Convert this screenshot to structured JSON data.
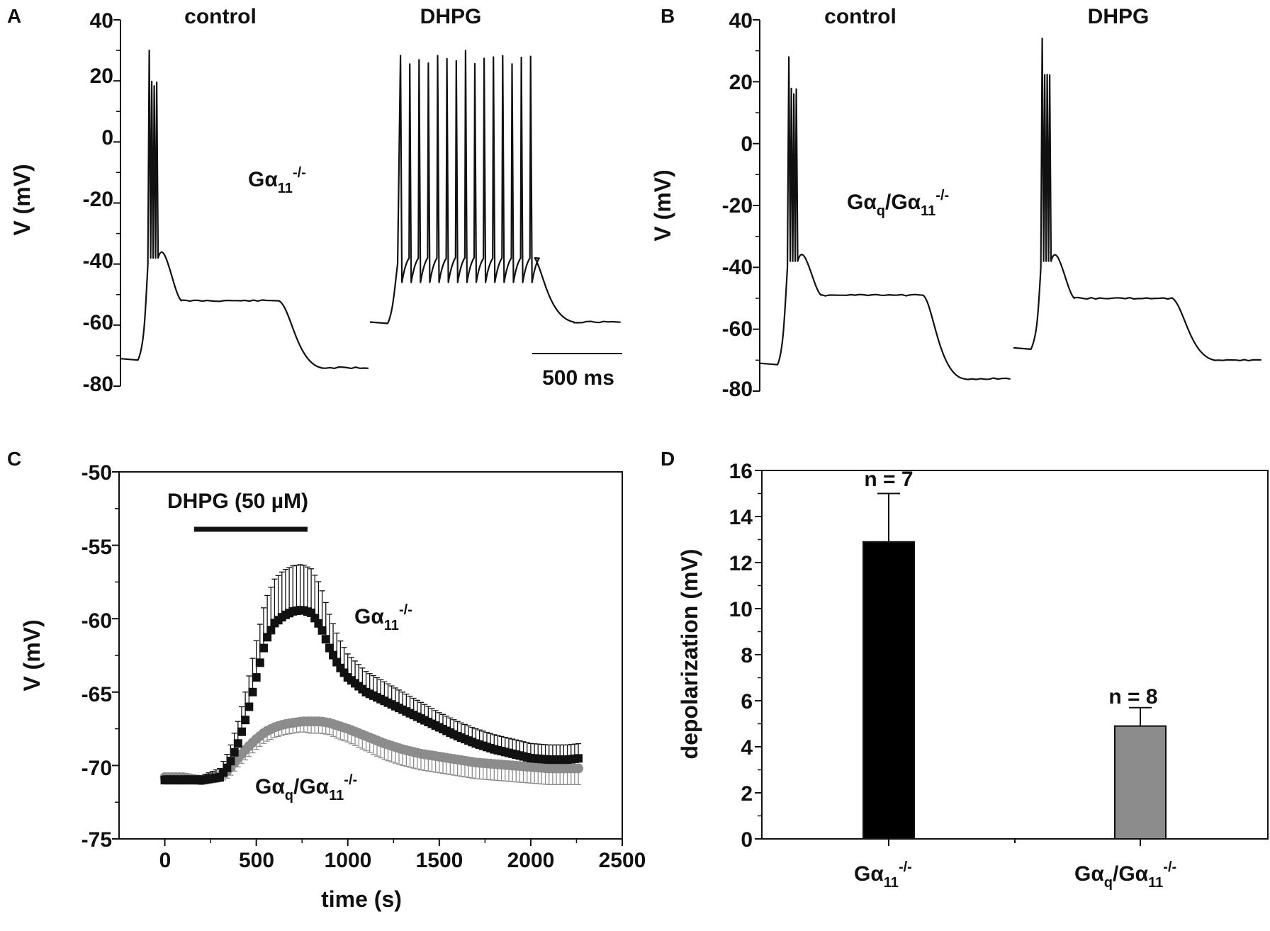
{
  "panels": {
    "A": {
      "label": "A",
      "ylabel": "V (mV)",
      "yticks": [
        "40",
        "20",
        "0",
        "-20",
        "-40",
        "-60",
        "-80"
      ],
      "trace_titles": [
        "control",
        "DHPG"
      ],
      "genotype": {
        "main": "Gα",
        "sub": "11",
        "sup": "-/-"
      },
      "scalebar": "500 ms"
    },
    "B": {
      "label": "B",
      "ylabel": "V (mV)",
      "yticks": [
        "40",
        "20",
        "0",
        "-20",
        "-40",
        "-60",
        "-80"
      ],
      "trace_titles": [
        "control",
        "DHPG"
      ],
      "genotype": {
        "main1": "Gα",
        "sub1": "q",
        "mid": "/Gα",
        "sub2": "11",
        "sup": "-/-"
      }
    },
    "C": {
      "label": "C",
      "ylabel": "V (mV)",
      "xlabel": "time (s)",
      "yticks": [
        "-50",
        "-55",
        "-60",
        "-65",
        "-70",
        "-75"
      ],
      "xticks": [
        "0",
        "500",
        "1000",
        "1500",
        "2000",
        "2500"
      ],
      "drug_label": "DHPG (50 µM)",
      "series_labels": [
        {
          "main": "Gα",
          "sub": "11",
          "sup": "-/-"
        },
        {
          "main1": "Gα",
          "sub1": "q",
          "mid": "/Gα",
          "sub2": "11",
          "sup": "-/-"
        }
      ]
    },
    "D": {
      "label": "D",
      "ylabel": "depolarization (mV)",
      "yticks": [
        "0",
        "2",
        "4",
        "6",
        "8",
        "10",
        "12",
        "14",
        "16"
      ],
      "categories": [
        {
          "main": "Gα",
          "sub": "11",
          "sup": "-/-"
        },
        {
          "main1": "Gα",
          "sub1": "q",
          "mid": "/Gα",
          "sub2": "11",
          "sup": "-/-"
        }
      ],
      "n_labels": [
        "n = 7",
        "n = 8"
      ]
    }
  },
  "chart_data": [
    {
      "panel": "A",
      "type": "line",
      "title": "control / DHPG (Gα11-/-)",
      "ylabel": "V (mV)",
      "ylim": [
        -80,
        40
      ],
      "traces": [
        {
          "name": "control",
          "resting_mV": -71,
          "plateau_mV": -52,
          "final_mV": -74,
          "peak_mV": 30,
          "spikes": 4
        },
        {
          "name": "DHPG",
          "resting_mV": -59,
          "plateau_mV": -40,
          "trough_mV": -46,
          "final_mV": -59,
          "peak_mV": 30,
          "spikes": 15
        }
      ]
    },
    {
      "panel": "B",
      "type": "line",
      "title": "control / DHPG (Gαq/Gα11-/-)",
      "ylabel": "V (mV)",
      "ylim": [
        -80,
        40
      ],
      "traces": [
        {
          "name": "control",
          "resting_mV": -71,
          "plateau_mV": -49,
          "final_mV": -76,
          "peak_mV": 28,
          "spikes": 4
        },
        {
          "name": "DHPG",
          "resting_mV": -66,
          "plateau_mV": -50,
          "final_mV": -70,
          "peak_mV": 34,
          "spikes": 4
        }
      ]
    },
    {
      "panel": "C",
      "type": "scatter",
      "xlabel": "time (s)",
      "ylabel": "V (mV)",
      "xlim": [
        -250,
        2500
      ],
      "ylim": [
        -75,
        -50
      ],
      "drug_interval_s": [
        160,
        780
      ],
      "series": [
        {
          "name": "Gα11-/-",
          "color": "#111111",
          "marker": "square",
          "x": [
            0,
            100,
            200,
            300,
            350,
            400,
            450,
            500,
            550,
            600,
            650,
            700,
            750,
            800,
            850,
            900,
            950,
            1000,
            1100,
            1200,
            1300,
            1400,
            1500,
            1600,
            1700,
            1800,
            1900,
            2000,
            2100,
            2200,
            2270
          ],
          "y": [
            -71.0,
            -71.0,
            -71.0,
            -70.8,
            -70.0,
            -68.5,
            -66.5,
            -64.0,
            -61.5,
            -60.3,
            -59.8,
            -59.5,
            -59.4,
            -59.6,
            -60.5,
            -62.0,
            -63.2,
            -64.0,
            -65.0,
            -65.6,
            -66.2,
            -66.8,
            -67.4,
            -68.0,
            -68.5,
            -68.9,
            -69.2,
            -69.5,
            -69.6,
            -69.6,
            -69.5
          ],
          "error_plus": [
            0.3,
            0.3,
            0.3,
            0.6,
            1.0,
            1.5,
            2.0,
            2.5,
            2.8,
            3.0,
            3.1,
            3.1,
            3.1,
            3.0,
            2.8,
            2.3,
            1.9,
            1.6,
            1.4,
            1.3,
            1.2,
            1.1,
            1.0,
            1.0,
            1.0,
            1.0,
            1.0,
            1.0,
            1.0,
            1.0,
            1.0
          ]
        },
        {
          "name": "Gαq/Gα11-/-",
          "color": "#8c8c8c",
          "marker": "circle",
          "x": [
            0,
            100,
            200,
            300,
            350,
            400,
            450,
            500,
            550,
            600,
            650,
            700,
            750,
            800,
            850,
            900,
            950,
            1000,
            1100,
            1200,
            1300,
            1400,
            1500,
            1600,
            1700,
            1800,
            1900,
            2000,
            2100,
            2200,
            2270
          ],
          "y": [
            -70.8,
            -70.8,
            -71.0,
            -70.7,
            -70.3,
            -69.5,
            -68.8,
            -68.2,
            -67.7,
            -67.4,
            -67.2,
            -67.1,
            -67.0,
            -67.0,
            -67.0,
            -67.1,
            -67.3,
            -67.5,
            -68.0,
            -68.5,
            -68.9,
            -69.2,
            -69.4,
            -69.6,
            -69.8,
            -69.9,
            -70.0,
            -70.1,
            -70.2,
            -70.2,
            -70.2
          ],
          "error_minus": [
            0.3,
            0.3,
            0.3,
            0.4,
            0.5,
            0.6,
            0.7,
            0.7,
            0.7,
            0.7,
            0.7,
            0.7,
            0.7,
            0.8,
            0.8,
            0.8,
            0.9,
            0.9,
            1.0,
            1.1,
            1.1,
            1.1,
            1.1,
            1.1,
            1.1,
            1.1,
            1.1,
            1.1,
            1.1,
            1.1,
            1.1
          ]
        }
      ]
    },
    {
      "panel": "D",
      "type": "bar",
      "categories": [
        "Gα11-/-",
        "Gαq/Gα11-/-"
      ],
      "values": [
        12.9,
        4.9
      ],
      "errors": [
        2.1,
        0.8
      ],
      "colors": [
        "#000000",
        "#8c8c8c"
      ],
      "n": [
        "n = 7",
        "n = 8"
      ],
      "ylabel": "depolarization (mV)",
      "ylim": [
        0,
        16
      ]
    }
  ]
}
